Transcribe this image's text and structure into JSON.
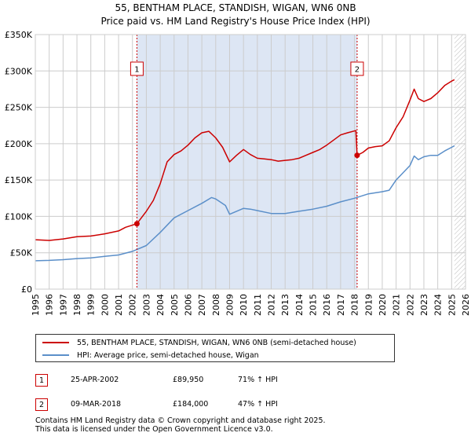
{
  "header": {
    "title_line1": "55, BENTHAM PLACE, STANDISH, WIGAN, WN6 0NB",
    "title_line2": "Price paid vs. HM Land Registry's House Price Index (HPI)"
  },
  "legend": {
    "property_label": "55, BENTHAM PLACE, STANDISH, WIGAN, WN6 0NB (semi-detached house)",
    "hpi_label": "HPI: Average price, semi-detached house, Wigan"
  },
  "sales": [
    {
      "num": "1",
      "date": "25-APR-2002",
      "price": "£89,950",
      "hpi_change": "71% ↑ HPI"
    },
    {
      "num": "2",
      "date": "09-MAR-2018",
      "price": "£184,000",
      "hpi_change": "47% ↑ HPI"
    }
  ],
  "footer": {
    "line1": "Contains HM Land Registry data © Crown copyright and database right 2025.",
    "line2": "This data is licensed under the Open Government Licence v3.0."
  },
  "colors": {
    "property": "#cc0000",
    "hpi": "#5b8fc9",
    "shade": "#dde6f4",
    "grid": "#cccccc"
  },
  "chart_data": {
    "type": "line",
    "title": "Price paid vs. HM Land Registry's House Price Index (HPI)",
    "xlabel": "",
    "ylabel": "",
    "xlim": [
      1995,
      2026
    ],
    "ylim": [
      0,
      350000
    ],
    "x_ticks": [
      "1995",
      "1996",
      "1997",
      "1998",
      "1999",
      "2000",
      "2001",
      "2002",
      "2003",
      "2004",
      "2005",
      "2006",
      "2007",
      "2008",
      "2009",
      "2010",
      "2011",
      "2012",
      "2013",
      "2014",
      "2015",
      "2016",
      "2017",
      "2018",
      "2019",
      "2020",
      "2021",
      "2022",
      "2023",
      "2024",
      "2025",
      "2026"
    ],
    "y_ticks": [
      {
        "value": 0,
        "label": "£0"
      },
      {
        "value": 50000,
        "label": "£50K"
      },
      {
        "value": 100000,
        "label": "£100K"
      },
      {
        "value": 150000,
        "label": "£150K"
      },
      {
        "value": 200000,
        "label": "£200K"
      },
      {
        "value": 250000,
        "label": "£250K"
      },
      {
        "value": 300000,
        "label": "£300K"
      },
      {
        "value": 350000,
        "label": "£350K"
      }
    ],
    "shaded_region": {
      "from": 2002.32,
      "to": 2018.19
    },
    "forecast_from": 2025.2,
    "markers": [
      {
        "label": "1",
        "x": 2002.32,
        "y": 89950
      },
      {
        "label": "2",
        "x": 2018.19,
        "y": 184000
      }
    ],
    "series": [
      {
        "name": "55, BENTHAM PLACE, STANDISH, WIGAN, WN6 0NB (semi-detached house)",
        "color": "#cc0000",
        "points": [
          [
            1995,
            68000
          ],
          [
            1996,
            67000
          ],
          [
            1997,
            69000
          ],
          [
            1998,
            72000
          ],
          [
            1999,
            73000
          ],
          [
            2000,
            76000
          ],
          [
            2001,
            80000
          ],
          [
            2001.5,
            85000
          ],
          [
            2002.32,
            89950
          ],
          [
            2003,
            107000
          ],
          [
            2003.5,
            122000
          ],
          [
            2004,
            145000
          ],
          [
            2004.5,
            175000
          ],
          [
            2005,
            185000
          ],
          [
            2005.5,
            190000
          ],
          [
            2006,
            198000
          ],
          [
            2006.5,
            208000
          ],
          [
            2007,
            215000
          ],
          [
            2007.5,
            217000
          ],
          [
            2008,
            208000
          ],
          [
            2008.5,
            195000
          ],
          [
            2009,
            175000
          ],
          [
            2009.5,
            184000
          ],
          [
            2010,
            192000
          ],
          [
            2010.5,
            185000
          ],
          [
            2011,
            180000
          ],
          [
            2011.5,
            179000
          ],
          [
            2012,
            178000
          ],
          [
            2012.5,
            176000
          ],
          [
            2013,
            177000
          ],
          [
            2013.5,
            178000
          ],
          [
            2014,
            180000
          ],
          [
            2014.5,
            184000
          ],
          [
            2015,
            188000
          ],
          [
            2015.5,
            192000
          ],
          [
            2016,
            198000
          ],
          [
            2016.5,
            205000
          ],
          [
            2017,
            212000
          ],
          [
            2017.5,
            215000
          ],
          [
            2018.1,
            218000
          ],
          [
            2018.19,
            184000
          ],
          [
            2018.6,
            188000
          ],
          [
            2019,
            194000
          ],
          [
            2019.5,
            196000
          ],
          [
            2020,
            197000
          ],
          [
            2020.5,
            204000
          ],
          [
            2021,
            222000
          ],
          [
            2021.5,
            237000
          ],
          [
            2022,
            260000
          ],
          [
            2022.3,
            275000
          ],
          [
            2022.6,
            262000
          ],
          [
            2023,
            258000
          ],
          [
            2023.5,
            262000
          ],
          [
            2024,
            270000
          ],
          [
            2024.5,
            280000
          ],
          [
            2025,
            286000
          ],
          [
            2025.2,
            288000
          ]
        ]
      },
      {
        "name": "HPI: Average price, semi-detached house, Wigan",
        "color": "#5b8fc9",
        "points": [
          [
            1995,
            39000
          ],
          [
            1996,
            39500
          ],
          [
            1997,
            40500
          ],
          [
            1998,
            42000
          ],
          [
            1999,
            43000
          ],
          [
            2000,
            45000
          ],
          [
            2001,
            47000
          ],
          [
            2002,
            52000
          ],
          [
            2003,
            60000
          ],
          [
            2004,
            78000
          ],
          [
            2005,
            98000
          ],
          [
            2006,
            108000
          ],
          [
            2007,
            118000
          ],
          [
            2007.7,
            126000
          ],
          [
            2008,
            124000
          ],
          [
            2008.7,
            115000
          ],
          [
            2009,
            103000
          ],
          [
            2010,
            111000
          ],
          [
            2010.5,
            110000
          ],
          [
            2011,
            108000
          ],
          [
            2012,
            104000
          ],
          [
            2013,
            104000
          ],
          [
            2014,
            107000
          ],
          [
            2015,
            110000
          ],
          [
            2016,
            114000
          ],
          [
            2017,
            120000
          ],
          [
            2018,
            125000
          ],
          [
            2019,
            131000
          ],
          [
            2020,
            134000
          ],
          [
            2020.5,
            136000
          ],
          [
            2021,
            150000
          ],
          [
            2022,
            170000
          ],
          [
            2022.3,
            183000
          ],
          [
            2022.6,
            178000
          ],
          [
            2023,
            182000
          ],
          [
            2023.5,
            184000
          ],
          [
            2024,
            184000
          ],
          [
            2024.5,
            190000
          ],
          [
            2025,
            195000
          ],
          [
            2025.2,
            197000
          ]
        ]
      }
    ]
  }
}
